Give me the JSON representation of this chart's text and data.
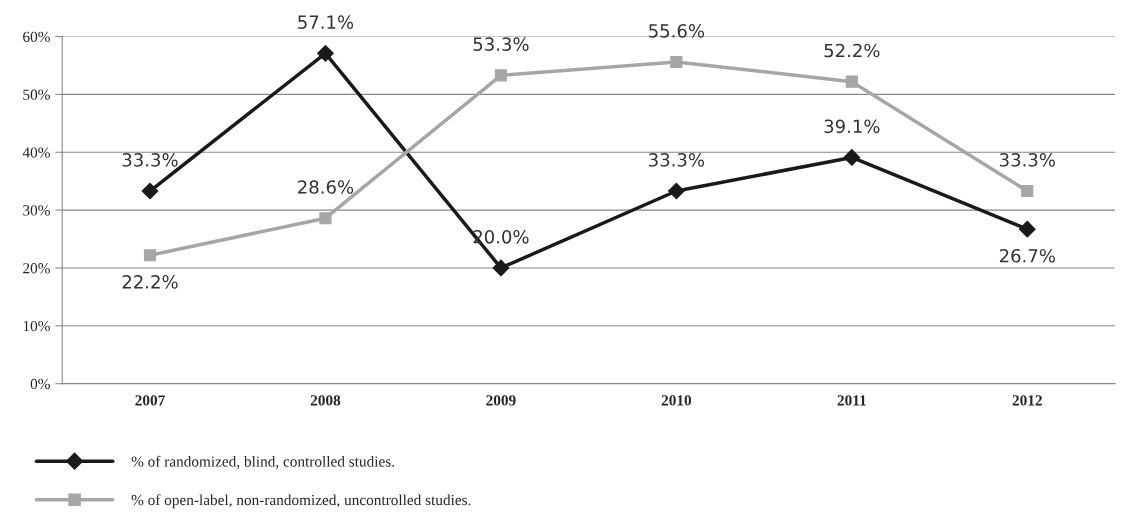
{
  "chart_data": {
    "type": "line",
    "categories": [
      "2007",
      "2008",
      "2009",
      "2010",
      "2011",
      "2012"
    ],
    "series": [
      {
        "name": "% of randomized, blind, controlled studies.",
        "color": "#1a1a1a",
        "marker": "diamond",
        "values": [
          33.3,
          57.1,
          20.0,
          33.3,
          39.1,
          26.7
        ],
        "value_labels": [
          "33.3%",
          "57.1%",
          "20.0%",
          "33.3%",
          "39.1%",
          "26.7%"
        ]
      },
      {
        "name": "% of open-label, non-randomized, uncontrolled studies.",
        "color": "#a6a6a6",
        "marker": "square",
        "values": [
          22.2,
          28.6,
          53.3,
          55.6,
          52.2,
          33.3
        ],
        "value_labels": [
          "22.2%",
          "28.6%",
          "53.3%",
          "55.6%",
          "52.2%",
          "33.3%"
        ]
      }
    ],
    "ylim": [
      0,
      60
    ],
    "yticks": [
      {
        "value": 0,
        "label": "0%"
      },
      {
        "value": 10,
        "label": "10%"
      },
      {
        "value": 20,
        "label": "20%"
      },
      {
        "value": 30,
        "label": "30%"
      },
      {
        "value": 40,
        "label": "40%"
      },
      {
        "value": 50,
        "label": "50%"
      },
      {
        "value": 60,
        "label": "60%"
      }
    ],
    "grid": "y",
    "legend": "bottom",
    "line_style": "solid"
  }
}
